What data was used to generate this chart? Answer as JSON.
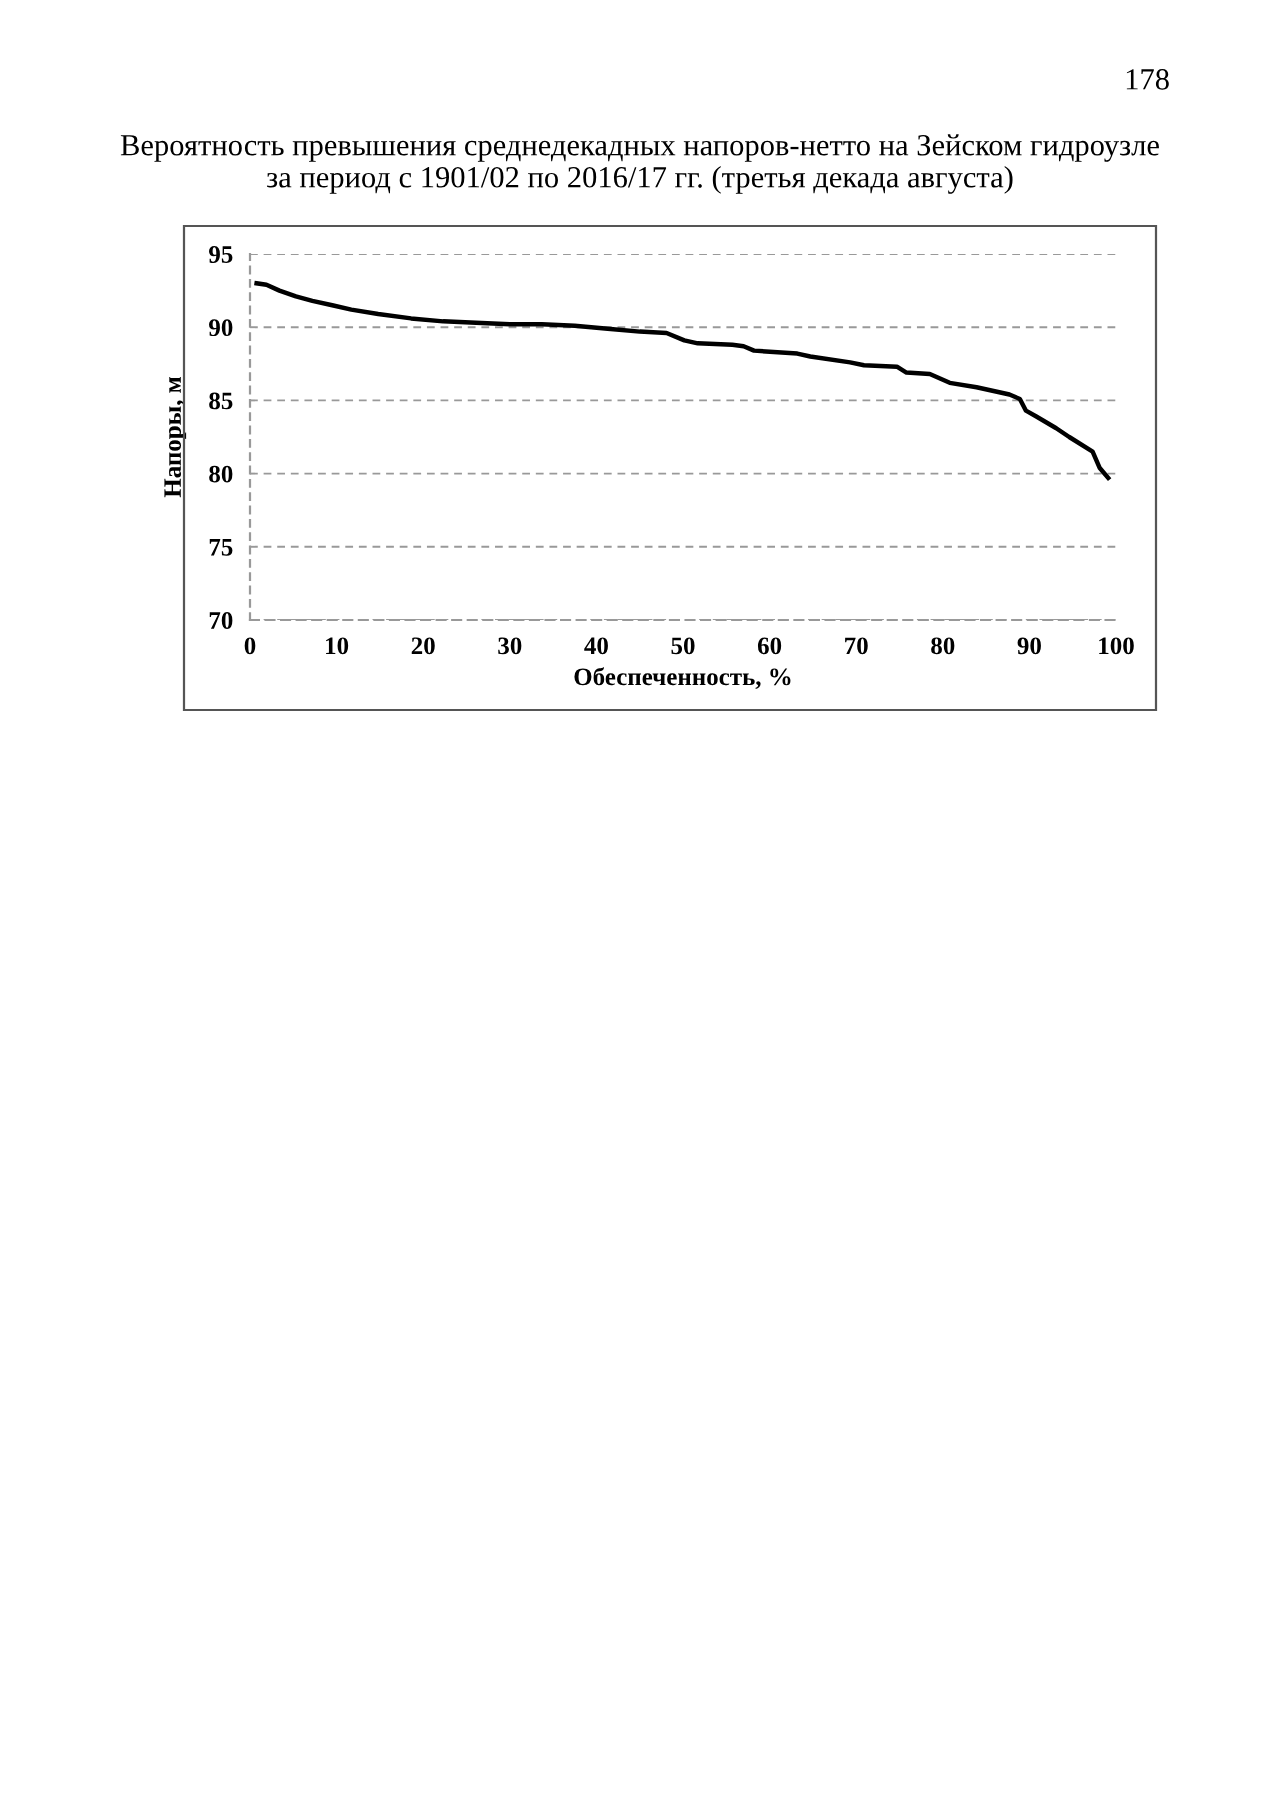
{
  "chart_data": {
    "type": "line",
    "title": "Вероятность превышения среднедекадных напоров-нетто на Зейском гидроузле\nза период с 1901/02 по 2016/17 гг. (третья декада августа)",
    "xlabel": "Обеспеченность, %",
    "ylabel": "Напоры, м",
    "annotations": [
      "178"
    ],
    "series": [
      {
        "color": "#000000",
        "x": [
          0.76,
          1.9,
          3.4,
          5.3,
          7.2,
          9.5,
          11.7,
          14.8,
          18.6,
          22.3,
          26.1,
          30,
          33.7,
          37.5,
          41.3,
          45,
          48.1,
          50.15,
          51.7,
          55.7,
          57,
          58.2,
          63.2,
          64.7,
          69.3,
          70.9,
          74.7,
          75.8,
          78.5,
          80.8,
          83.9,
          87.7,
          88.9,
          89.6,
          90.8,
          93.1,
          94.6,
          97.3,
          98.1,
          99.1
        ],
        "values": [
          93.0,
          92.9,
          92.5,
          92.1,
          91.8,
          91.5,
          91.2,
          90.9,
          90.6,
          90.4,
          90.3,
          90.2,
          90.2,
          90.1,
          89.9,
          89.7,
          89.6,
          89.1,
          88.9,
          88.8,
          88.7,
          88.4,
          88.2,
          88.0,
          87.6,
          87.4,
          87.3,
          86.9,
          86.8,
          86.2,
          85.9,
          85.4,
          85.1,
          84.3,
          83.9,
          83.1,
          82.5,
          81.5,
          80.4,
          79.7
        ]
      }
    ],
    "xlim": [
      0,
      100
    ],
    "xticks": [
      0,
      10,
      20,
      30,
      40,
      50,
      60,
      70,
      80,
      90,
      100
    ],
    "ylim": [
      70,
      95
    ],
    "yticks": [
      70,
      75,
      80,
      85,
      90,
      95
    ],
    "grid": "y",
    "line_style": "solid",
    "marker": "none",
    "legend": false
  }
}
